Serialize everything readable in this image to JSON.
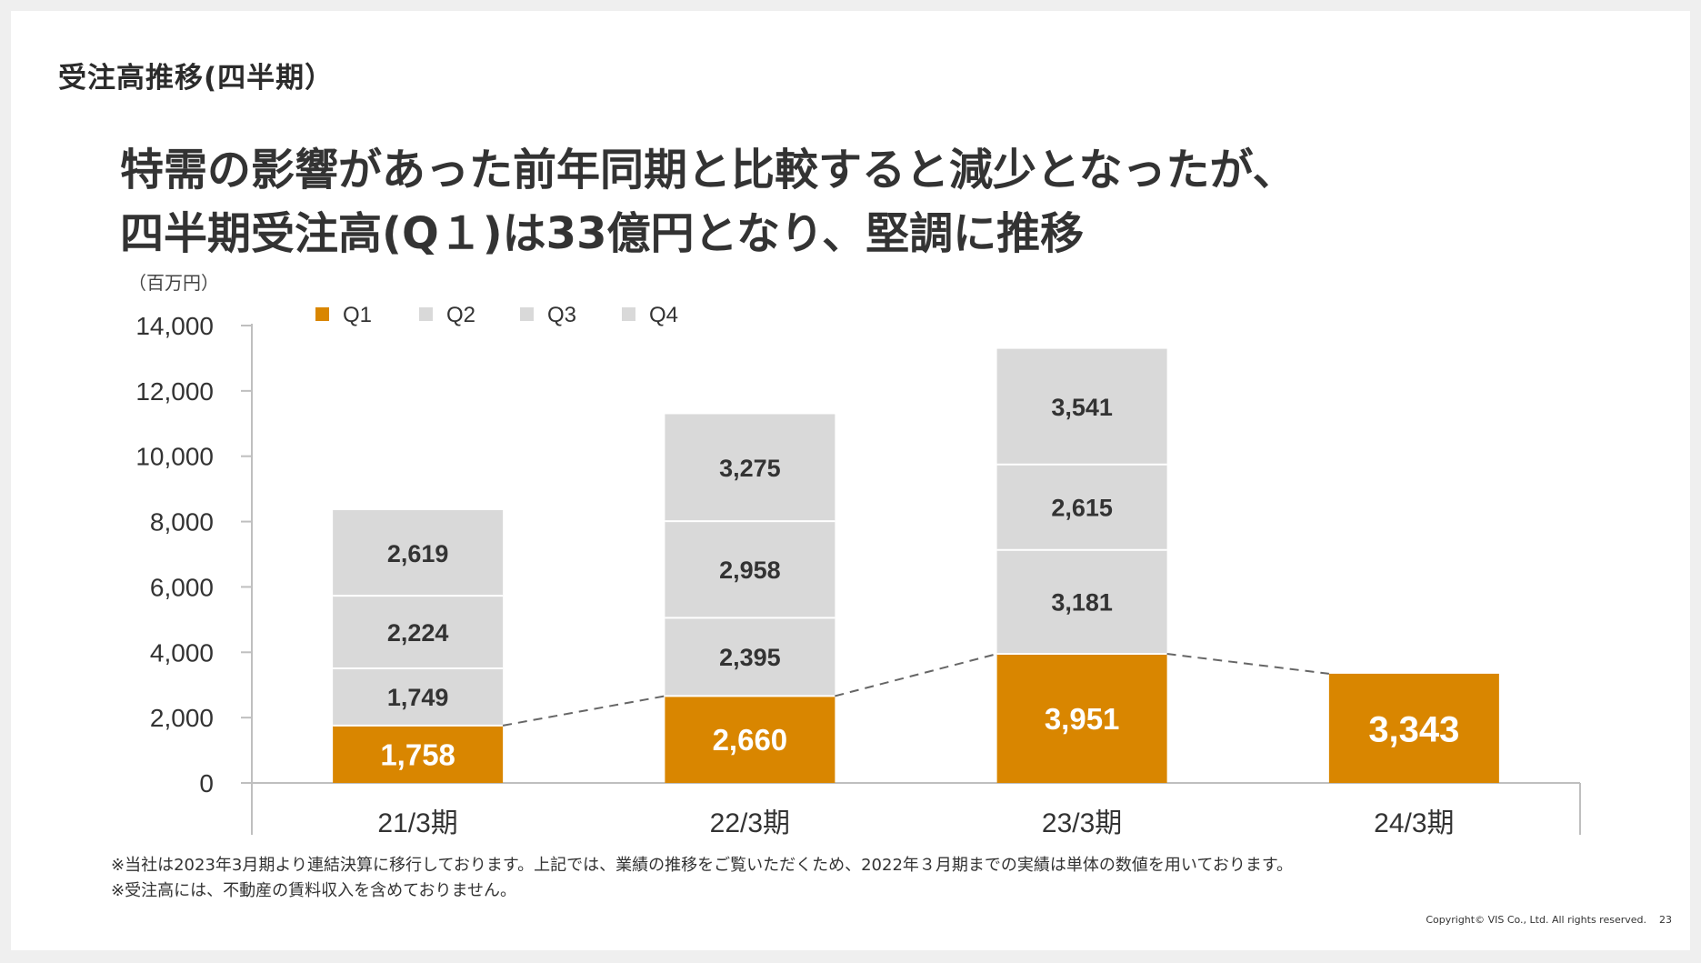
{
  "section_title": "受注高推移(四半期）",
  "headline": {
    "line1": "特需の影響があった前年同期と比較すると減少となったが、",
    "line2": "四半期受注高(Q１)は33億円となり、堅調に推移"
  },
  "chart_data": {
    "type": "bar",
    "stacked": true,
    "unit_label": "（百万円）",
    "categories": [
      "21/3期",
      "22/3期",
      "23/3期",
      "24/3期"
    ],
    "series": [
      {
        "name": "Q1",
        "values": [
          1758,
          2660,
          3951,
          3343
        ],
        "color": "#d98600"
      },
      {
        "name": "Q2",
        "values": [
          1749,
          2395,
          3181,
          null
        ],
        "color": "#d9d9d9"
      },
      {
        "name": "Q3",
        "values": [
          2224,
          2958,
          2615,
          null
        ],
        "color": "#d9d9d9"
      },
      {
        "name": "Q4",
        "values": [
          2619,
          3275,
          3541,
          null
        ],
        "color": "#d9d9d9"
      }
    ],
    "data_labels": [
      [
        "1,758",
        "2,660",
        "3,951",
        "3,343"
      ],
      [
        "1,749",
        "2,395",
        "3,181",
        ""
      ],
      [
        "2,224",
        "2,958",
        "2,615",
        ""
      ],
      [
        "2,619",
        "3,275",
        "3,541",
        ""
      ]
    ],
    "ylim": [
      0,
      14000
    ],
    "yticks": [
      0,
      2000,
      4000,
      6000,
      8000,
      10000,
      12000,
      14000
    ],
    "ytick_labels": [
      "0",
      "2,000",
      "4,000",
      "6,000",
      "8,000",
      "10,000",
      "12,000",
      "14,000"
    ],
    "legend_position": "top-left",
    "q1_trend_line": "dashed"
  },
  "notes": [
    "※当社は2023年3月期より連結決算に移行しております。上記では、業績の推移をご覧いただくため、2022年３月期までの実績は単体の数値を用いております。",
    "※受注高には、不動産の賃料収入を含めておりません。"
  ],
  "copyright": "Copyright© VIS Co., Ltd. All rights reserved.",
  "page_number": "23"
}
